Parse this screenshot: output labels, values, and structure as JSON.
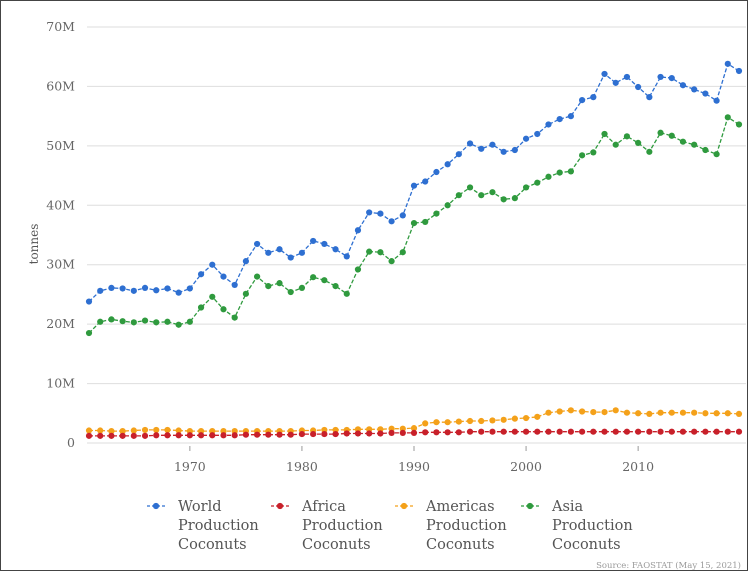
{
  "chart_data": {
    "type": "line",
    "title": "",
    "xlabel": "",
    "ylabel": "tonnes",
    "xlim": [
      1961,
      2019
    ],
    "ylim": [
      0,
      70000000
    ],
    "y_ticks": [
      0,
      10000000,
      20000000,
      30000000,
      40000000,
      50000000,
      60000000,
      70000000
    ],
    "y_tick_labels": [
      "0",
      "10M",
      "20M",
      "30M",
      "40M",
      "50M",
      "60M",
      "70M"
    ],
    "x_ticks": [
      1970,
      1980,
      1990,
      2000,
      2010
    ],
    "x_tick_labels": [
      "1970",
      "1980",
      "1990",
      "2000",
      "2010"
    ],
    "grid": "horizontal",
    "legend_position": "bottom",
    "x": [
      1961,
      1962,
      1963,
      1964,
      1965,
      1966,
      1967,
      1968,
      1969,
      1970,
      1971,
      1972,
      1973,
      1974,
      1975,
      1976,
      1977,
      1978,
      1979,
      1980,
      1981,
      1982,
      1983,
      1984,
      1985,
      1986,
      1987,
      1988,
      1989,
      1990,
      1991,
      1992,
      1993,
      1994,
      1995,
      1996,
      1997,
      1998,
      1999,
      2000,
      2001,
      2002,
      2003,
      2004,
      2005,
      2006,
      2007,
      2008,
      2009,
      2010,
      2011,
      2012,
      2013,
      2014,
      2015,
      2016,
      2017,
      2018,
      2019
    ],
    "series": [
      {
        "name": "World Production Coconuts",
        "color": "#2e6fd1",
        "values": [
          23.8,
          25.6,
          26.1,
          26.0,
          25.6,
          26.1,
          25.7,
          26.0,
          25.3,
          26.0,
          28.4,
          30.0,
          28.0,
          26.6,
          30.6,
          33.5,
          32.0,
          32.6,
          31.2,
          32.0,
          34.0,
          33.5,
          32.6,
          31.4,
          35.8,
          38.8,
          38.6,
          37.3,
          38.3,
          43.3,
          44.0,
          45.6,
          46.9,
          48.6,
          50.4,
          49.5,
          50.2,
          49.0,
          49.3,
          51.2,
          52.0,
          53.6,
          54.5,
          55.0,
          57.7,
          58.2,
          62.1,
          60.6,
          61.6,
          59.9,
          58.2,
          61.6,
          61.4,
          60.2,
          59.5,
          58.8,
          57.6,
          63.8,
          62.6
        ]
      },
      {
        "name": "Africa Production Coconuts",
        "color": "#c8202a",
        "values": [
          1.2,
          1.2,
          1.2,
          1.2,
          1.2,
          1.2,
          1.3,
          1.3,
          1.3,
          1.3,
          1.3,
          1.3,
          1.3,
          1.3,
          1.4,
          1.4,
          1.4,
          1.4,
          1.4,
          1.5,
          1.5,
          1.5,
          1.5,
          1.6,
          1.6,
          1.6,
          1.6,
          1.7,
          1.7,
          1.7,
          1.8,
          1.8,
          1.8,
          1.8,
          1.9,
          1.9,
          1.9,
          1.9,
          1.9,
          1.9,
          1.9,
          1.9,
          1.9,
          1.9,
          1.9,
          1.9,
          1.9,
          1.9,
          1.9,
          1.9,
          1.9,
          1.9,
          1.9,
          1.9,
          1.9,
          1.9,
          1.9,
          1.9,
          1.9
        ]
      },
      {
        "name": "Americas Production Coconuts",
        "color": "#f4a11a",
        "values": [
          2.1,
          2.1,
          2.0,
          2.0,
          2.1,
          2.2,
          2.2,
          2.2,
          2.1,
          2.0,
          2.0,
          2.0,
          2.0,
          2.0,
          2.0,
          2.0,
          2.0,
          2.0,
          2.0,
          2.1,
          2.1,
          2.2,
          2.2,
          2.2,
          2.3,
          2.3,
          2.3,
          2.4,
          2.4,
          2.5,
          3.3,
          3.5,
          3.5,
          3.6,
          3.7,
          3.7,
          3.8,
          3.9,
          4.1,
          4.2,
          4.4,
          5.1,
          5.3,
          5.5,
          5.3,
          5.2,
          5.2,
          5.5,
          5.1,
          5.0,
          4.9,
          5.1,
          5.1,
          5.1,
          5.1,
          5.0,
          5.0,
          5.0,
          4.9
        ]
      },
      {
        "name": "Asia Production Coconuts",
        "color": "#2f9a3e",
        "values": [
          18.5,
          20.4,
          20.8,
          20.5,
          20.3,
          20.6,
          20.3,
          20.4,
          19.9,
          20.4,
          22.8,
          24.6,
          22.5,
          21.1,
          25.1,
          28.0,
          26.4,
          26.9,
          25.4,
          26.1,
          27.9,
          27.4,
          26.4,
          25.1,
          29.2,
          32.2,
          32.1,
          30.6,
          32.1,
          37.0,
          37.2,
          38.6,
          40.0,
          41.7,
          43.0,
          41.7,
          42.2,
          41.0,
          41.2,
          43.0,
          43.8,
          44.8,
          45.5,
          45.7,
          48.4,
          48.9,
          52.0,
          50.2,
          51.6,
          50.5,
          49.0,
          52.2,
          51.7,
          50.7,
          50.2,
          49.3,
          48.6,
          54.8,
          53.6
        ]
      }
    ],
    "source": "Source: FAOSTAT (May 15, 2021)"
  }
}
